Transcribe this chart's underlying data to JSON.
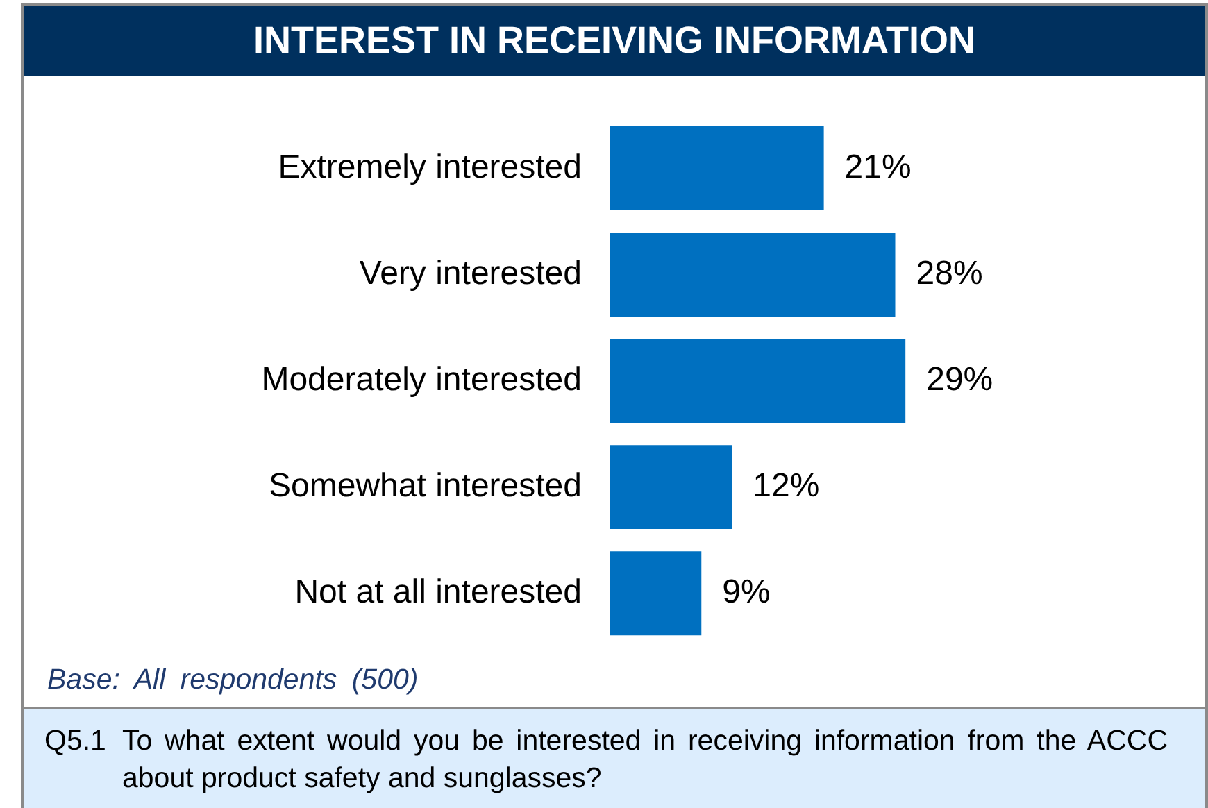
{
  "chart_data": {
    "type": "bar",
    "orientation": "horizontal",
    "title": "INTEREST IN RECEIVING INFORMATION",
    "categories": [
      "Extremely interested",
      "Very interested",
      "Moderately interested",
      "Somewhat interested",
      "Not at all interested"
    ],
    "values": [
      21,
      28,
      29,
      12,
      9
    ],
    "color": "#0070c0",
    "value_labels": [
      "21%",
      "28%",
      "29%",
      "12%",
      "9%"
    ],
    "annotations": [
      "Base: All respondents (500)",
      "Q5.1 To what extent would you be interested in receiving information from the ACCC about product safety and sunglasses?"
    ]
  }
}
